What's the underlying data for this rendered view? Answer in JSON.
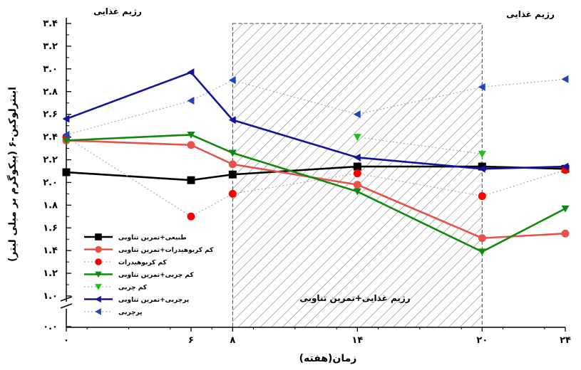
{
  "chart_data": {
    "type": "line",
    "xlabel": "زمان(هفته)",
    "ylabel": "اینترلوکین-۶ (پیکوگرم بر میلی لیتر)",
    "x_ticks": [
      0,
      6,
      8,
      14,
      20,
      24
    ],
    "x_tick_labels": [
      "۰",
      "۶",
      "۸",
      "۱۴",
      "۲۰",
      "۲۴"
    ],
    "y_ticks": [
      1.0,
      1.2,
      1.4,
      1.6,
      1.8,
      2.0,
      2.2,
      2.4,
      2.6,
      2.8,
      3.0,
      3.2,
      3.4
    ],
    "y_tick_labels": [
      "۱.۰",
      "۱.۲",
      "۱.۴",
      "۱.۶",
      "۱.۸",
      "۲.۰",
      "۲.۲",
      "۲.۴",
      "۲.۶",
      "۲.۸",
      "۳.۰",
      "۳.۲",
      "۳.۴"
    ],
    "y_zero_label": "۰.۰",
    "xlim": [
      0,
      24
    ],
    "ylim": [
      1.0,
      3.4
    ],
    "axis_break": true,
    "shaded_region": {
      "x_start": 8,
      "x_end": 20,
      "label": "رژیم غذایی+تمرین تناوبی"
    },
    "region_labels": {
      "left": "رژیم غذایی",
      "right": "رژیم غذایی"
    },
    "legend_position": "bottom-left",
    "series": [
      {
        "name": "طبیعی+تمرین تناوبی",
        "color": "#000000",
        "marker": "square",
        "style": "solid",
        "x": [
          0,
          6,
          8,
          14,
          20,
          24
        ],
        "y": [
          2.09,
          2.02,
          2.07,
          2.14,
          2.14,
          2.12
        ]
      },
      {
        "name": "کم کربوهیدرات+تمرین تناوبی",
        "color": "#e8504a",
        "marker": "circle",
        "style": "solid",
        "x": [
          0,
          6,
          8,
          14,
          20,
          24
        ],
        "y": [
          2.37,
          2.33,
          2.16,
          1.98,
          1.51,
          1.55
        ]
      },
      {
        "name": "کم کربوهیدرات",
        "color": "#ff0000",
        "marker": "circle",
        "style": "dotted",
        "x": [
          0,
          6,
          8,
          14,
          20,
          24
        ],
        "y": [
          2.4,
          1.7,
          1.9,
          2.08,
          1.88,
          2.11
        ]
      },
      {
        "name": "کم چربی+تمرین تناوبی",
        "color": "#0f8a0f",
        "marker": "triangle-down",
        "style": "solid",
        "x": [
          0,
          6,
          8,
          14,
          20,
          24
        ],
        "y": [
          2.37,
          2.42,
          2.26,
          1.92,
          1.39,
          1.77
        ]
      },
      {
        "name": "کم چربی",
        "color": "#22c022",
        "marker": "triangle-down",
        "style": "dotted",
        "x": [
          14,
          20
        ],
        "y": [
          2.4,
          2.25
        ]
      },
      {
        "name": "پرچربی+تمرین تناوبی",
        "color": "#14149a",
        "marker": "triangle-left",
        "style": "solid",
        "x": [
          0,
          6,
          8,
          14,
          20,
          24
        ],
        "y": [
          2.56,
          2.97,
          2.55,
          2.22,
          2.12,
          2.14
        ]
      },
      {
        "name": "پرچربی",
        "color": "#2244bb",
        "marker": "triangle-left",
        "style": "dotted",
        "x": [
          0,
          6,
          8,
          14,
          20,
          24
        ],
        "y": [
          2.42,
          2.72,
          2.9,
          2.6,
          2.84,
          2.91
        ]
      }
    ]
  }
}
